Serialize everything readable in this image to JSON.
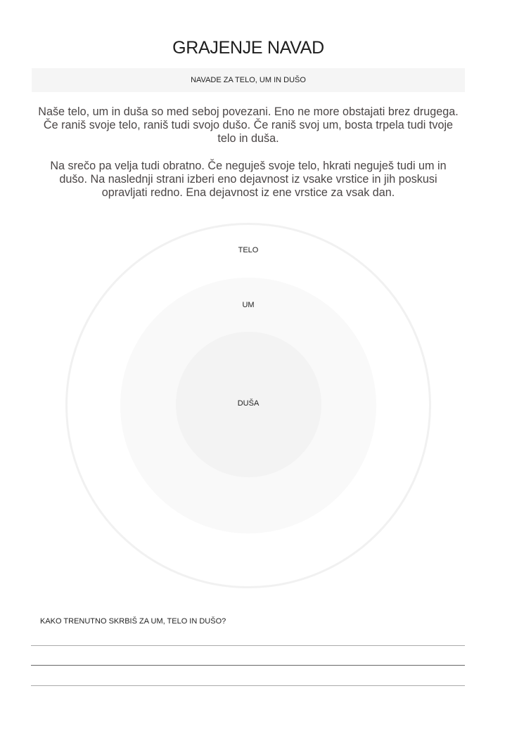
{
  "header": {
    "title": "GRAJENJE NAVAD",
    "subtitle": "NAVADE ZA TELO, UM IN DUŠO"
  },
  "intro": {
    "paragraphs": [
      "Naše telo, um in duša so med seboj povezani. Eno ne more obstajati brez drugega. Če raniš svoje telo, raniš tudi svojo dušo. Če raniš svoj um, bosta trpela tudi tvoje telo in duša.",
      "Na srečo pa velja tudi obratno. Če neguješ svoje telo, hkrati neguješ tudi um in dušo. Na naslednji strani izberi eno dejavnost iz vsake vrstice in jih poskusi opravljati redno. Ena dejavnost iz ene vrstice za vsak dan."
    ]
  },
  "diagram": {
    "rings": [
      {
        "label": "TELO",
        "color": "#ffffff"
      },
      {
        "label": "UM",
        "color": "#f9f9f9"
      },
      {
        "label": "DUŠA",
        "color": "#f3f3f3"
      }
    ]
  },
  "reflection": {
    "question": "KAKO TRENUTNO SKRBIŠ ZA UM, TELO IN DUŠO?",
    "answer_lines": [
      "",
      "",
      ""
    ]
  }
}
